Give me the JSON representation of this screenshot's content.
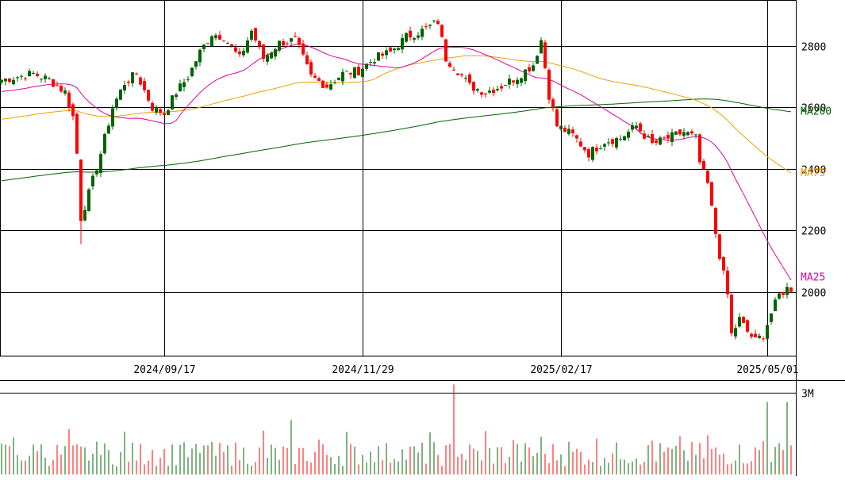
{
  "chart_data": {
    "type": "candlestick",
    "colors": {
      "up": "#006400",
      "down": "#ff0000",
      "grid": "#000000",
      "ma25": "#e000a8",
      "ma75": "#f0a000",
      "ma200": "#006400"
    },
    "price_axis": {
      "ticks": [
        2800,
        2600,
        2400,
        2200,
        2000
      ],
      "tick_labels": [
        "2800",
        "2600",
        "2400",
        "2200",
        "2000"
      ],
      "range": [
        1790,
        2950
      ]
    },
    "date_labels": [
      "2024/09/17",
      "2024/11/29",
      "2025/02/17",
      "2025/05/01"
    ],
    "date_label_index": [
      41,
      91,
      141,
      193
    ],
    "volume_axis": {
      "tick_labels": [
        "3M"
      ],
      "ticks": [
        3000000
      ],
      "range": [
        0,
        3400000
      ]
    },
    "ma_labels": {
      "ma200": "MA200",
      "ma75": "MA75",
      "ma25": "MA25"
    },
    "ma_label_values": {
      "ma200": 2590,
      "ma75": 2390,
      "ma25": 2050
    },
    "ohlc_anchors": [
      [
        0,
        2690
      ],
      [
        4,
        2700
      ],
      [
        8,
        2710
      ],
      [
        12,
        2690
      ],
      [
        16,
        2650
      ],
      [
        18,
        2570
      ],
      [
        19,
        2450
      ],
      [
        20,
        2240
      ],
      [
        22,
        2320
      ],
      [
        25,
        2450
      ],
      [
        28,
        2600
      ],
      [
        31,
        2680
      ],
      [
        34,
        2710
      ],
      [
        38,
        2600
      ],
      [
        41,
        2580
      ],
      [
        44,
        2650
      ],
      [
        47,
        2700
      ],
      [
        50,
        2780
      ],
      [
        53,
        2840
      ],
      [
        56,
        2830
      ],
      [
        60,
        2760
      ],
      [
        63,
        2850
      ],
      [
        66,
        2760
      ],
      [
        70,
        2810
      ],
      [
        74,
        2820
      ],
      [
        78,
        2700
      ],
      [
        82,
        2670
      ],
      [
        86,
        2710
      ],
      [
        90,
        2720
      ],
      [
        94,
        2760
      ],
      [
        98,
        2780
      ],
      [
        102,
        2830
      ],
      [
        106,
        2850
      ],
      [
        110,
        2880
      ],
      [
        112,
        2760
      ],
      [
        115,
        2720
      ],
      [
        118,
        2670
      ],
      [
        122,
        2650
      ],
      [
        126,
        2670
      ],
      [
        130,
        2700
      ],
      [
        134,
        2740
      ],
      [
        136,
        2820
      ],
      [
        138,
        2640
      ],
      [
        140,
        2540
      ],
      [
        144,
        2510
      ],
      [
        148,
        2450
      ],
      [
        152,
        2490
      ],
      [
        156,
        2500
      ],
      [
        160,
        2540
      ],
      [
        164,
        2480
      ],
      [
        168,
        2500
      ],
      [
        172,
        2520
      ],
      [
        175,
        2500
      ],
      [
        176,
        2420
      ],
      [
        178,
        2350
      ],
      [
        180,
        2190
      ],
      [
        181,
        2120
      ],
      [
        183,
        1990
      ],
      [
        184,
        1860
      ],
      [
        186,
        1910
      ],
      [
        188,
        1870
      ],
      [
        190,
        1840
      ],
      [
        192,
        1860
      ],
      [
        194,
        1930
      ],
      [
        196,
        1990
      ],
      [
        198,
        2010
      ],
      [
        199,
        2000
      ]
    ]
  }
}
